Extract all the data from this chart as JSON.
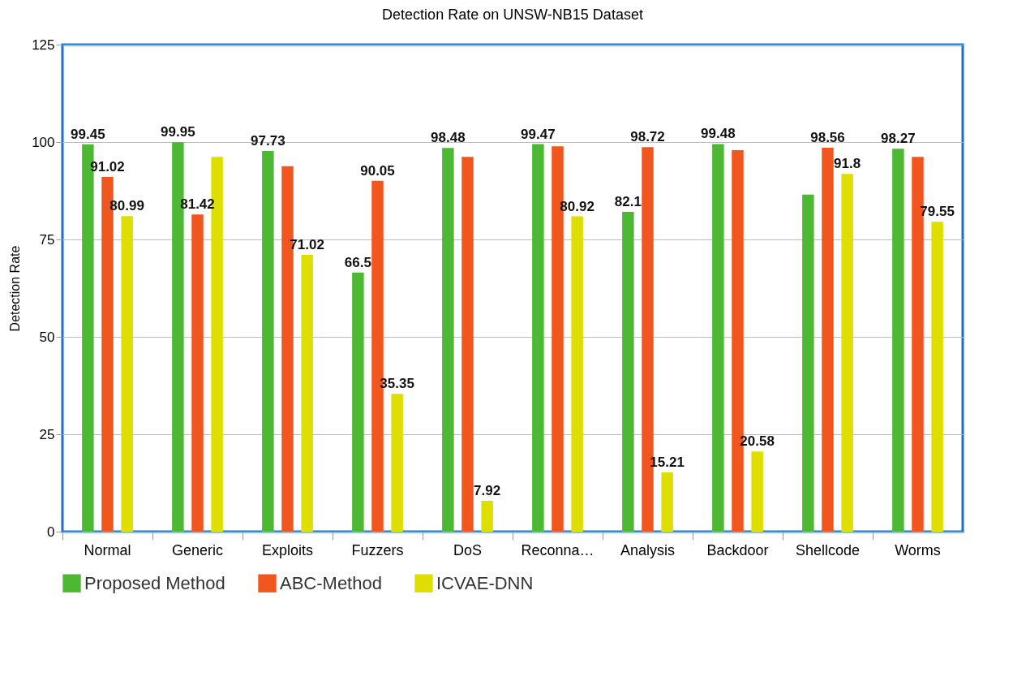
{
  "chart_data": {
    "type": "bar",
    "title": "Detection Rate on UNSW-NB15 Dataset",
    "ylabel": "Detection Rate",
    "categories": [
      "Normal",
      "Generic",
      "Exploits",
      "Fuzzers",
      "DoS",
      "Reconna…",
      "Analysis",
      "Backdoor",
      "Shellcode",
      "Worms"
    ],
    "series": [
      {
        "name": "Proposed Method",
        "color": "#4db833",
        "values": [
          99.45,
          99.95,
          97.73,
          66.5,
          98.48,
          99.47,
          82.1,
          99.48,
          86.5,
          98.27
        ],
        "value_labels": [
          "99.45",
          "99.95",
          "97.73",
          "66.5",
          "98.48",
          "99.47",
          "82.1",
          "99.48",
          null,
          "98.27"
        ]
      },
      {
        "name": "ABC-Method",
        "color": "#f0561d",
        "values": [
          91.02,
          81.42,
          93.8,
          90.05,
          96.2,
          98.9,
          98.72,
          97.9,
          98.56,
          96.2
        ],
        "value_labels": [
          "91.02",
          "81.42",
          null,
          "90.05",
          null,
          null,
          "98.72",
          null,
          "98.56",
          null
        ]
      },
      {
        "name": "ICVAE-DNN",
        "color": "#dede00",
        "values": [
          80.99,
          96.2,
          71.02,
          35.35,
          7.92,
          80.92,
          15.21,
          20.58,
          91.8,
          79.55
        ],
        "value_labels": [
          "80.99",
          null,
          "71.02",
          "35.35",
          "7.92",
          "80.92",
          "15.21",
          "20.58",
          "91.8",
          "79.55"
        ]
      }
    ],
    "ylim": [
      0,
      125
    ],
    "yticks": [
      0,
      25,
      50,
      75,
      100,
      125
    ],
    "grid": "y",
    "legend": "bottom"
  }
}
